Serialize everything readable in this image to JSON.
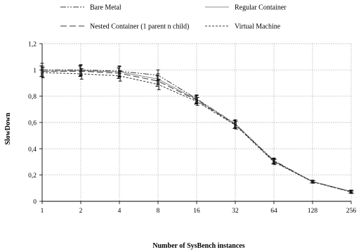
{
  "chart_data": {
    "type": "line",
    "title": "",
    "xlabel": "Number of SysBench instances",
    "ylabel": "SlowDown",
    "x": [
      1,
      2,
      4,
      8,
      16,
      32,
      64,
      128,
      256
    ],
    "x_tick_labels": [
      "1",
      "2",
      "4",
      "8",
      "16",
      "32",
      "64",
      "128",
      "256"
    ],
    "x_scale": "log2",
    "ylim": [
      0,
      1.2
    ],
    "y_tick_labels": [
      "0",
      "0,2",
      "0,4",
      "0,6",
      "0,8",
      "1",
      "1,2"
    ],
    "grid": true,
    "legend_position": "top",
    "series": [
      {
        "name": "Bare Metal",
        "dash": "8,2,2,2,2,2",
        "values": [
          1.0,
          1.0,
          0.99,
          0.96,
          0.78,
          0.59,
          0.31,
          0.15,
          0.075
        ],
        "error": [
          0.05,
          0.04,
          0.04,
          0.04,
          0.03,
          0.03,
          0.02,
          0.01,
          0.01
        ]
      },
      {
        "name": "Regular Container",
        "dash": "",
        "values": [
          0.99,
          0.995,
          0.985,
          0.93,
          0.775,
          0.59,
          0.305,
          0.15,
          0.075
        ],
        "error": [
          0.04,
          0.04,
          0.04,
          0.04,
          0.03,
          0.03,
          0.02,
          0.01,
          0.01
        ]
      },
      {
        "name": "Nested Container (1 parent n child)",
        "dash": "9,4",
        "values": [
          0.99,
          0.99,
          0.975,
          0.915,
          0.77,
          0.585,
          0.305,
          0.15,
          0.072
        ],
        "error": [
          0.04,
          0.04,
          0.04,
          0.04,
          0.03,
          0.03,
          0.02,
          0.01,
          0.01
        ]
      },
      {
        "name": "Virtual Machine",
        "dash": "3,2",
        "values": [
          0.98,
          0.97,
          0.955,
          0.89,
          0.76,
          0.58,
          0.3,
          0.148,
          0.07
        ],
        "error": [
          0.04,
          0.04,
          0.04,
          0.04,
          0.03,
          0.03,
          0.02,
          0.01,
          0.01
        ]
      }
    ]
  }
}
